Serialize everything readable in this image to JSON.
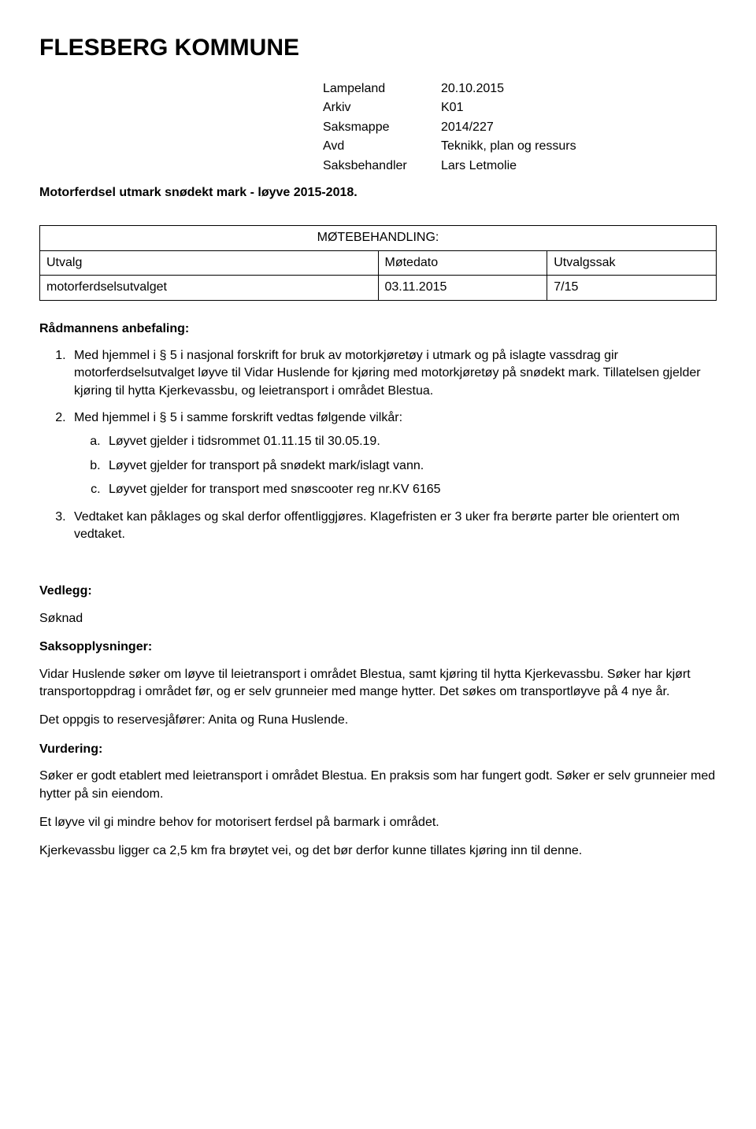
{
  "title": "FLESBERG KOMMUNE",
  "meta": {
    "rows": [
      {
        "label": "Lampeland",
        "value": "20.10.2015"
      },
      {
        "label": "Arkiv",
        "value": "K01"
      },
      {
        "label": "Saksmappe",
        "value": "2014/227"
      },
      {
        "label": "Avd",
        "value": "Teknikk, plan og ressurs"
      },
      {
        "label": "Saksbehandler",
        "value": "Lars Letmolie"
      }
    ]
  },
  "subject": "Motorferdsel utmark snødekt mark - løyve 2015-2018.",
  "table": {
    "heading": "MØTEBEHANDLING:",
    "col1": "Utvalg",
    "col2": "Møtedato",
    "col3": "Utvalgssak",
    "row1": {
      "c1": "motorferdselsutvalget",
      "c2": "03.11.2015",
      "c3": "7/15"
    }
  },
  "recommendation": {
    "heading": "Rådmannens anbefaling:",
    "items": [
      "Med hjemmel i § 5 i nasjonal forskrift for bruk av motorkjøretøy i utmark og på islagte vassdrag gir motorferdselsutvalget løyve til Vidar Huslende for kjøring med motorkjøretøy på snødekt mark. Tillatelsen gjelder kjøring til hytta Kjerkevassbu, og leietransport i området Blestua.",
      "Med hjemmel i § 5 i samme forskrift vedtas følgende vilkår:",
      "Vedtaket kan påklages og skal derfor offentliggjøres. Klagefristen er 3 uker fra berørte parter ble orientert om vedtaket."
    ],
    "subitems": [
      "Løyvet gjelder i tidsrommet 01.11.15 til 30.05.19.",
      "Løyvet gjelder for transport på snødekt mark/islagt vann.",
      "Løyvet gjelder for transport med snøscooter reg nr.KV 6165"
    ]
  },
  "vedlegg": {
    "heading": "Vedlegg:",
    "item": "Søknad"
  },
  "saksopp": {
    "heading": "Saksopplysninger:",
    "p1": "Vidar Huslende søker om løyve til leietransport i området Blestua, samt kjøring til hytta Kjerkevassbu. Søker har kjørt transportoppdrag i området før, og er selv grunneier med mange hytter. Det søkes om transportløyve på 4 nye år.",
    "p2": "Det oppgis to reservesjåfører: Anita og Runa Huslende."
  },
  "vurdering": {
    "heading": "Vurdering:",
    "p1": "Søker er godt etablert med leietransport i området Blestua. En praksis som har fungert godt. Søker er selv grunneier med hytter på sin eiendom.",
    "p2": "Et løyve vil gi mindre behov for motorisert ferdsel på barmark i området.",
    "p3": "Kjerkevassbu ligger ca 2,5 km fra brøytet vei, og det bør derfor kunne tillates kjøring inn til denne."
  }
}
